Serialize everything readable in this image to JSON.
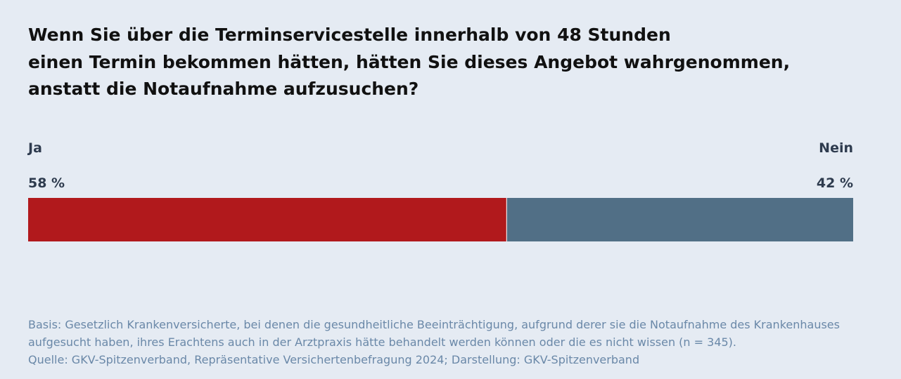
{
  "title_lines": [
    "Wenn Sie über die Terminservicestelle innerhalb von 48 Stunden",
    "einen Termin bekommen hätten, hätten Sie dieses Angebot wahrgenommen,",
    "anstatt die Notaufnahme aufzusuchen?"
  ],
  "chart_data": {
    "type": "bar",
    "stacked": true,
    "orientation": "horizontal",
    "title": "Wenn Sie über die Terminservicestelle innerhalb von 48 Stunden einen Termin bekommen hätten, hätten Sie dieses Angebot wahrgenommen, anstatt die Notaufnahme aufzusuchen?",
    "unit": "%",
    "series": [
      {
        "name": "Ja",
        "value": 58,
        "label": "58 %",
        "color": "#b1191c"
      },
      {
        "name": "Nein",
        "value": 42,
        "label": "42 %",
        "color": "#516f86"
      }
    ]
  },
  "footer_lines": [
    "Basis: Gesetzlich Krankenversicherte, bei denen die gesundheitliche Beeinträchtigung, aufgrund derer sie die Notaufnahme des Krankenhauses",
    "aufgesucht haben, ihres Erachtens auch in der Arztpraxis hätte behandelt werden können oder die es nicht wissen  (n = 345).",
    "Quelle: GKV-Spitzenverband, Repräsentative Versichertenbefragung 2024; Darstellung: GKV-Spitzenverband"
  ],
  "colors": {
    "background": "#e5ebf3",
    "ja": "#b1191c",
    "nein": "#516f86",
    "footer_text": "#6a88a8"
  }
}
